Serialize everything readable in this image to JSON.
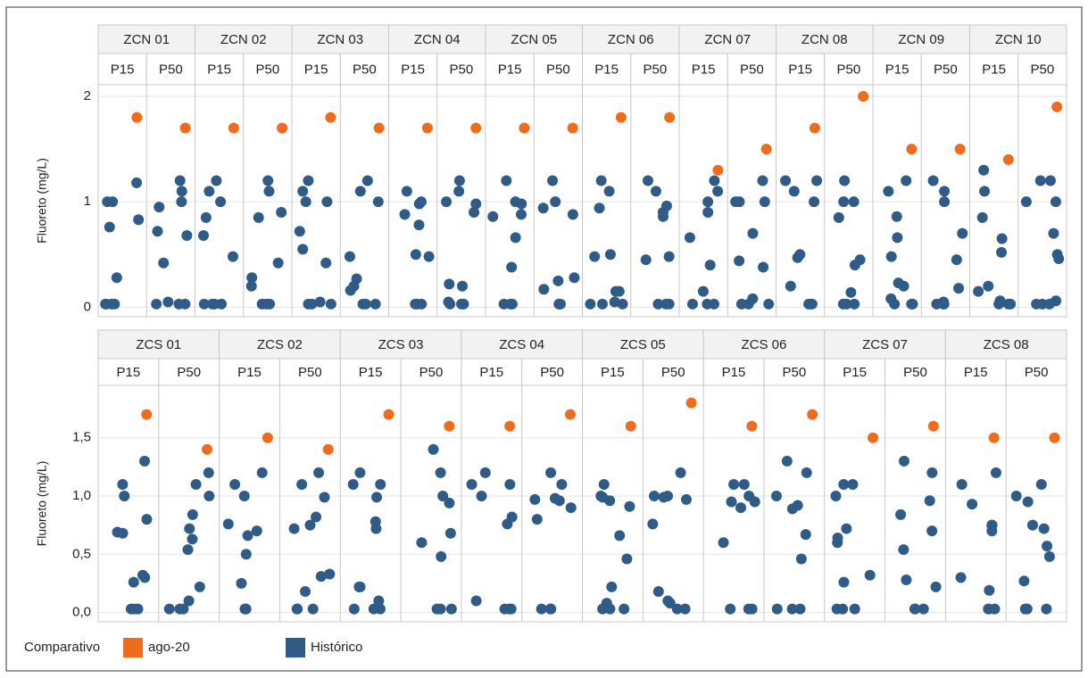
{
  "chart_data": [
    {
      "type": "scatter",
      "y_label": "Fluoreto (mg/L)",
      "ylim": [
        -0.09,
        2.11
      ],
      "yticks": [
        0,
        1,
        2
      ],
      "grid": true,
      "groups": [
        {
          "name": "ZCN 01",
          "columns": [
            {
              "name": "P15",
              "historico": [
                0.03,
                0.03,
                0.03,
                0.03,
                1.0,
                1.0,
                0.83,
                0.76,
                0.28,
                1.18
              ],
              "ago20": 1.8
            },
            {
              "name": "P50",
              "historico": [
                0.03,
                0.03,
                0.03,
                0.05,
                1.1,
                0.95,
                1.0,
                0.72,
                0.68,
                0.42,
                1.2
              ],
              "ago20": 1.7
            }
          ]
        },
        {
          "name": "ZCN 02",
          "columns": [
            {
              "name": "P15",
              "historico": [
                0.03,
                0.03,
                0.03,
                0.03,
                1.0,
                0.85,
                0.68,
                0.48,
                1.1,
                1.2
              ],
              "ago20": 1.7
            },
            {
              "name": "P50",
              "historico": [
                0.03,
                0.03,
                0.03,
                0.9,
                0.28,
                0.42,
                0.2,
                1.1,
                0.85,
                1.2
              ],
              "ago20": 1.7
            }
          ]
        },
        {
          "name": "ZCN 03",
          "columns": [
            {
              "name": "P15",
              "historico": [
                0.03,
                0.03,
                0.03,
                0.05,
                1.1,
                1.0,
                1.0,
                0.42,
                0.72,
                0.55,
                1.2
              ],
              "ago20": 1.8
            },
            {
              "name": "P50",
              "historico": [
                0.03,
                0.03,
                0.03,
                1.0,
                0.27,
                0.2,
                0.16,
                1.1,
                0.48,
                1.2
              ],
              "ago20": 1.7
            }
          ]
        },
        {
          "name": "ZCN 04",
          "columns": [
            {
              "name": "P15",
              "historico": [
                0.03,
                0.03,
                0.03,
                0.98,
                0.48,
                0.78,
                0.88,
                1.0,
                0.5,
                1.1
              ],
              "ago20": 1.7
            },
            {
              "name": "P50",
              "historico": [
                0.03,
                0.03,
                0.03,
                0.05,
                1.1,
                0.98,
                0.22,
                1.0,
                0.9,
                0.2,
                1.2
              ],
              "ago20": 1.7
            }
          ]
        },
        {
          "name": "ZCN 05",
          "columns": [
            {
              "name": "P15",
              "historico": [
                0.03,
                0.03,
                0.03,
                0.98,
                0.86,
                0.66,
                1.0,
                0.88,
                0.38,
                1.2
              ],
              "ago20": 1.7
            },
            {
              "name": "P50",
              "historico": [
                0.03,
                0.03,
                0.03,
                0.94,
                0.25,
                0.28,
                1.0,
                0.88,
                0.17,
                1.2
              ],
              "ago20": 1.7
            }
          ]
        },
        {
          "name": "ZCN 06",
          "columns": [
            {
              "name": "P15",
              "historico": [
                0.03,
                0.03,
                0.03,
                0.94,
                1.1,
                0.15,
                0.05,
                0.48,
                0.5,
                0.15,
                1.2
              ],
              "ago20": 1.8
            },
            {
              "name": "P50",
              "historico": [
                0.03,
                0.03,
                0.03,
                0.86,
                0.9,
                1.1,
                0.96,
                0.48,
                0.45,
                1.2
              ],
              "ago20": 1.8
            }
          ]
        },
        {
          "name": "ZCN 07",
          "columns": [
            {
              "name": "P15",
              "historico": [
                0.03,
                0.03,
                0.03,
                0.9,
                1.0,
                1.1,
                0.4,
                0.66,
                0.15,
                1.2
              ],
              "ago20": 1.3
            },
            {
              "name": "P50",
              "historico": [
                0.03,
                0.03,
                0.03,
                1.0,
                1.0,
                0.08,
                1.0,
                0.7,
                0.44,
                0.38,
                1.2
              ],
              "ago20": 1.5
            }
          ]
        },
        {
          "name": "ZCN 08",
          "columns": [
            {
              "name": "P15",
              "historico": [
                0.03,
                0.03,
                0.03,
                1.2,
                0.47,
                1.1,
                0.5,
                1.0,
                0.2,
                1.2
              ],
              "ago20": 1.7
            },
            {
              "name": "P50",
              "historico": [
                0.03,
                0.03,
                0.03,
                0.85,
                1.0,
                0.4,
                0.45,
                0.14,
                1.0,
                1.2
              ],
              "ago20": 2.0
            }
          ]
        },
        {
          "name": "ZCN 09",
          "columns": [
            {
              "name": "P15",
              "historico": [
                0.03,
                0.03,
                0.03,
                0.86,
                1.1,
                0.23,
                0.08,
                0.2,
                0.66,
                0.48,
                1.2
              ],
              "ago20": 1.5
            },
            {
              "name": "P50",
              "historico": [
                0.03,
                0.03,
                0.03,
                0.05,
                1.0,
                1.1,
                0.18,
                0.45,
                0.7,
                1.2
              ],
              "ago20": 1.5
            }
          ]
        },
        {
          "name": "ZCN 10",
          "columns": [
            {
              "name": "P15",
              "historico": [
                0.03,
                0.03,
                0.03,
                0.85,
                0.2,
                0.15,
                0.06,
                0.52,
                0.65,
                1.1,
                1.3
              ],
              "ago20": 1.4
            },
            {
              "name": "P50",
              "historico": [
                0.03,
                0.03,
                0.03,
                1.0,
                1.0,
                0.06,
                0.5,
                0.46,
                0.7,
                1.2,
                1.2
              ],
              "ago20": 1.9
            }
          ]
        }
      ]
    },
    {
      "type": "scatter",
      "y_label": "Fluoreto (mg/L)",
      "ylim": [
        -0.08,
        1.95
      ],
      "yticks": [
        {
          "value": 0,
          "label": "0,0"
        },
        {
          "value": 0.5,
          "label": "0,5"
        },
        {
          "value": 1,
          "label": "1,0"
        },
        {
          "value": 1.5,
          "label": "1,5"
        }
      ],
      "grid": true,
      "groups": [
        {
          "name": "ZCS 01",
          "columns": [
            {
              "name": "P15",
              "historico": [
                0.03,
                0.03,
                0.03,
                0.32,
                1.0,
                0.8,
                0.26,
                0.69,
                1.1,
                0.68,
                0.3,
                1.3
              ],
              "ago20": 1.7
            },
            {
              "name": "P50",
              "historico": [
                0.03,
                0.03,
                0.03,
                0.1,
                1.0,
                0.84,
                0.63,
                0.72,
                0.54,
                0.22,
                1.1,
                1.2
              ],
              "ago20": 1.4
            }
          ]
        },
        {
          "name": "ZCS 02",
          "columns": [
            {
              "name": "P15",
              "historico": [
                0.03,
                0.03,
                0.03,
                1.1,
                0.76,
                0.7,
                0.66,
                0.5,
                0.25,
                1.0,
                1.2
              ],
              "ago20": 1.5
            },
            {
              "name": "P50",
              "historico": [
                0.03,
                0.03,
                0.03,
                0.18,
                0.99,
                0.82,
                0.72,
                0.75,
                0.31,
                0.33,
                1.1,
                1.2
              ],
              "ago20": 1.4
            }
          ]
        },
        {
          "name": "ZCS 03",
          "columns": [
            {
              "name": "P15",
              "historico": [
                0.03,
                0.03,
                0.03,
                0.1,
                0.99,
                0.22,
                0.22,
                1.1,
                1.1,
                0.78,
                0.72,
                1.2
              ],
              "ago20": 1.7
            },
            {
              "name": "P50",
              "historico": [
                0.03,
                0.03,
                0.03,
                0.94,
                0.48,
                1.0,
                0.68,
                0.6,
                1.4,
                1.2
              ],
              "ago20": 1.6
            }
          ]
        },
        {
          "name": "ZCS 04",
          "columns": [
            {
              "name": "P15",
              "historico": [
                0.03,
                0.03,
                0.03,
                0.1,
                1.0,
                0.76,
                0.82,
                1.1,
                1.1,
                1.2
              ],
              "ago20": 1.6
            },
            {
              "name": "P50",
              "historico": [
                0.03,
                0.03,
                0.03,
                0.96,
                0.98,
                0.9,
                0.8,
                0.97,
                1.1,
                1.2
              ],
              "ago20": 1.7
            }
          ]
        },
        {
          "name": "ZCS 05",
          "columns": [
            {
              "name": "P15",
              "historico": [
                0.03,
                0.03,
                0.03,
                0.08,
                1.0,
                0.99,
                0.91,
                0.22,
                0.66,
                0.46,
                0.96,
                1.1
              ],
              "ago20": 1.6
            },
            {
              "name": "P50",
              "historico": [
                0.03,
                0.03,
                0.08,
                1.0,
                0.97,
                1.0,
                0.99,
                0.1,
                0.76,
                0.18,
                1.2
              ],
              "ago20": 1.8
            }
          ]
        },
        {
          "name": "ZCS 06",
          "columns": [
            {
              "name": "P15",
              "historico": [
                0.03,
                0.03,
                0.03,
                0.9,
                0.95,
                1.0,
                0.6,
                1.1,
                0.95,
                1.1
              ],
              "ago20": 1.6
            },
            {
              "name": "P50",
              "historico": [
                0.03,
                0.03,
                0.03,
                1.0,
                0.92,
                0.89,
                0.67,
                0.46,
                1.3,
                1.2
              ],
              "ago20": 1.7
            }
          ]
        },
        {
          "name": "ZCS 07",
          "columns": [
            {
              "name": "P15",
              "historico": [
                0.03,
                0.03,
                0.03,
                1.0,
                0.72,
                0.6,
                0.26,
                0.64,
                0.32,
                1.1,
                1.1
              ],
              "ago20": 1.5
            },
            {
              "name": "P50",
              "historico": [
                0.03,
                0.03,
                0.03,
                1.3,
                0.84,
                0.54,
                0.22,
                0.28,
                0.96,
                0.7,
                1.2
              ],
              "ago20": 1.6
            }
          ]
        },
        {
          "name": "ZCS 08",
          "columns": [
            {
              "name": "P15",
              "historico": [
                0.03,
                0.03,
                0.03,
                0.93,
                0.75,
                0.75,
                0.19,
                0.3,
                1.1,
                0.7,
                1.2
              ],
              "ago20": 1.5
            },
            {
              "name": "P50",
              "historico": [
                0.03,
                0.03,
                0.03,
                0.95,
                0.72,
                0.57,
                0.27,
                1.0,
                0.75,
                0.48,
                1.1
              ],
              "ago20": 1.5
            }
          ]
        }
      ]
    }
  ],
  "legend": {
    "title": "Comparativo",
    "items": [
      {
        "name": "ago-20",
        "color": "#ef6c1f"
      },
      {
        "name": "Histórico",
        "color": "#2f5b88"
      }
    ]
  }
}
